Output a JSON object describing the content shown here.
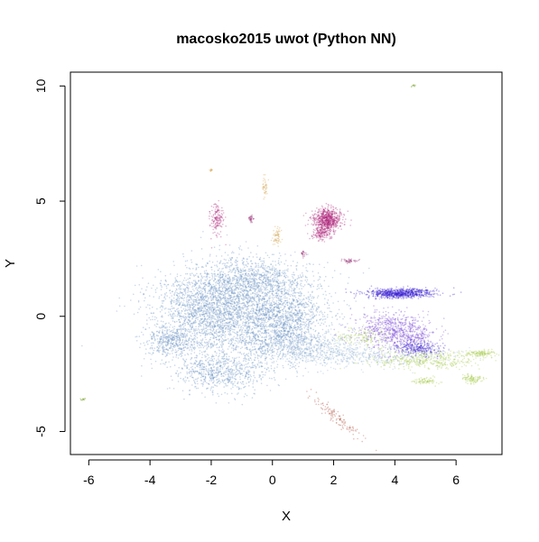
{
  "chart_data": {
    "type": "scatter",
    "title": "macosko2015 uwot (Python NN)",
    "xlabel": "X",
    "ylabel": "Y",
    "xlim": [
      -6.6,
      7.5
    ],
    "ylim": [
      -6.0,
      10.6
    ],
    "x_ticks": [
      -6,
      -4,
      -2,
      0,
      2,
      4,
      6
    ],
    "y_ticks": [
      -5,
      0,
      5,
      10
    ],
    "grid": false,
    "legend": "none",
    "colors": {
      "blue_main": "#6b93c4",
      "blue_light": "#9bb7d8",
      "indigo": "#3a1fd0",
      "violet": "#7a4bd6",
      "magenta": "#b0247a",
      "magenta_dark": "#8e1f6a",
      "olive": "#a6cc4a",
      "orange": "#d4a24a",
      "red_brown": "#b04a3a",
      "green_small": "#7da637"
    },
    "clusters": [
      {
        "color": "blue_main",
        "cx": -1.0,
        "cy": 0.2,
        "sx": 1.3,
        "sy": 1.0,
        "n": 2600
      },
      {
        "color": "blue_main",
        "cx": -2.3,
        "cy": 0.5,
        "sx": 0.8,
        "sy": 0.9,
        "n": 900
      },
      {
        "color": "blue_main",
        "cx": -0.6,
        "cy": 1.6,
        "sx": 0.8,
        "sy": 0.5,
        "n": 700
      },
      {
        "color": "blue_main",
        "cx": -3.3,
        "cy": -1.1,
        "sx": 0.45,
        "sy": 0.35,
        "n": 400
      },
      {
        "color": "blue_main",
        "cx": -1.7,
        "cy": -2.4,
        "sx": 0.8,
        "sy": 0.45,
        "n": 700
      },
      {
        "color": "blue_main",
        "cx": 0.6,
        "cy": 0.0,
        "sx": 0.6,
        "sy": 0.6,
        "n": 500
      },
      {
        "color": "blue_main",
        "cx": 0.2,
        "cy": -1.0,
        "sx": 0.7,
        "sy": 0.5,
        "n": 500
      },
      {
        "color": "blue_light",
        "cx": 2.6,
        "cy": -1.7,
        "sx": 1.6,
        "sy": 0.25,
        "n": 600
      },
      {
        "color": "blue_light",
        "cx": 1.5,
        "cy": -1.3,
        "sx": 0.7,
        "sy": 0.3,
        "n": 300
      },
      {
        "color": "indigo",
        "cx": 4.2,
        "cy": 1.0,
        "sx": 0.55,
        "sy": 0.1,
        "n": 800
      },
      {
        "color": "violet",
        "cx": 3.8,
        "cy": -0.5,
        "sx": 0.6,
        "sy": 0.4,
        "n": 500
      },
      {
        "color": "violet",
        "cx": 4.4,
        "cy": -0.9,
        "sx": 0.5,
        "sy": 0.4,
        "n": 350
      },
      {
        "color": "indigo",
        "cx": 4.8,
        "cy": -1.4,
        "sx": 0.35,
        "sy": 0.15,
        "n": 250
      },
      {
        "color": "olive",
        "cx": 5.0,
        "cy": -1.9,
        "sx": 0.9,
        "sy": 0.2,
        "n": 400
      },
      {
        "color": "olive",
        "cx": 6.8,
        "cy": -1.6,
        "sx": 0.2,
        "sy": 0.08,
        "n": 120
      },
      {
        "color": "olive",
        "cx": 6.5,
        "cy": -2.7,
        "sx": 0.2,
        "sy": 0.1,
        "n": 100
      },
      {
        "color": "olive",
        "cx": 5.0,
        "cy": -2.8,
        "sx": 0.2,
        "sy": 0.08,
        "n": 80
      },
      {
        "color": "olive",
        "cx": 3.0,
        "cy": -0.9,
        "sx": 0.4,
        "sy": 0.2,
        "n": 120
      },
      {
        "color": "magenta",
        "cx": 1.8,
        "cy": 4.2,
        "sx": 0.22,
        "sy": 0.25,
        "n": 700
      },
      {
        "color": "magenta",
        "cx": 1.6,
        "cy": 3.6,
        "sx": 0.15,
        "sy": 0.15,
        "n": 150
      },
      {
        "color": "magenta",
        "cx": -1.8,
        "cy": 4.2,
        "sx": 0.1,
        "sy": 0.35,
        "n": 150
      },
      {
        "color": "magenta_dark",
        "cx": -0.7,
        "cy": 4.25,
        "sx": 0.04,
        "sy": 0.08,
        "n": 30
      },
      {
        "color": "magenta_dark",
        "cx": 2.5,
        "cy": 2.4,
        "sx": 0.15,
        "sy": 0.05,
        "n": 40
      },
      {
        "color": "magenta_dark",
        "cx": 1.0,
        "cy": 2.7,
        "sx": 0.05,
        "sy": 0.08,
        "n": 20
      },
      {
        "color": "orange",
        "cx": 0.15,
        "cy": 3.4,
        "sx": 0.08,
        "sy": 0.2,
        "n": 60
      },
      {
        "color": "orange",
        "cx": -0.25,
        "cy": 5.6,
        "sx": 0.05,
        "sy": 0.25,
        "n": 40
      },
      {
        "color": "orange",
        "cx": -2.0,
        "cy": 6.35,
        "sx": 0.03,
        "sy": 0.03,
        "n": 12
      },
      {
        "color": "red_brown",
        "cx": 2.1,
        "cy": -4.4,
        "sx": 0.45,
        "sy": 0.5,
        "n": 120,
        "corr": -0.95
      },
      {
        "color": "green_small",
        "cx": 4.6,
        "cy": 10.0,
        "sx": 0.03,
        "sy": 0.03,
        "n": 12
      },
      {
        "color": "green_small",
        "cx": -6.2,
        "cy": -3.6,
        "sx": 0.05,
        "sy": 0.03,
        "n": 14
      }
    ]
  }
}
